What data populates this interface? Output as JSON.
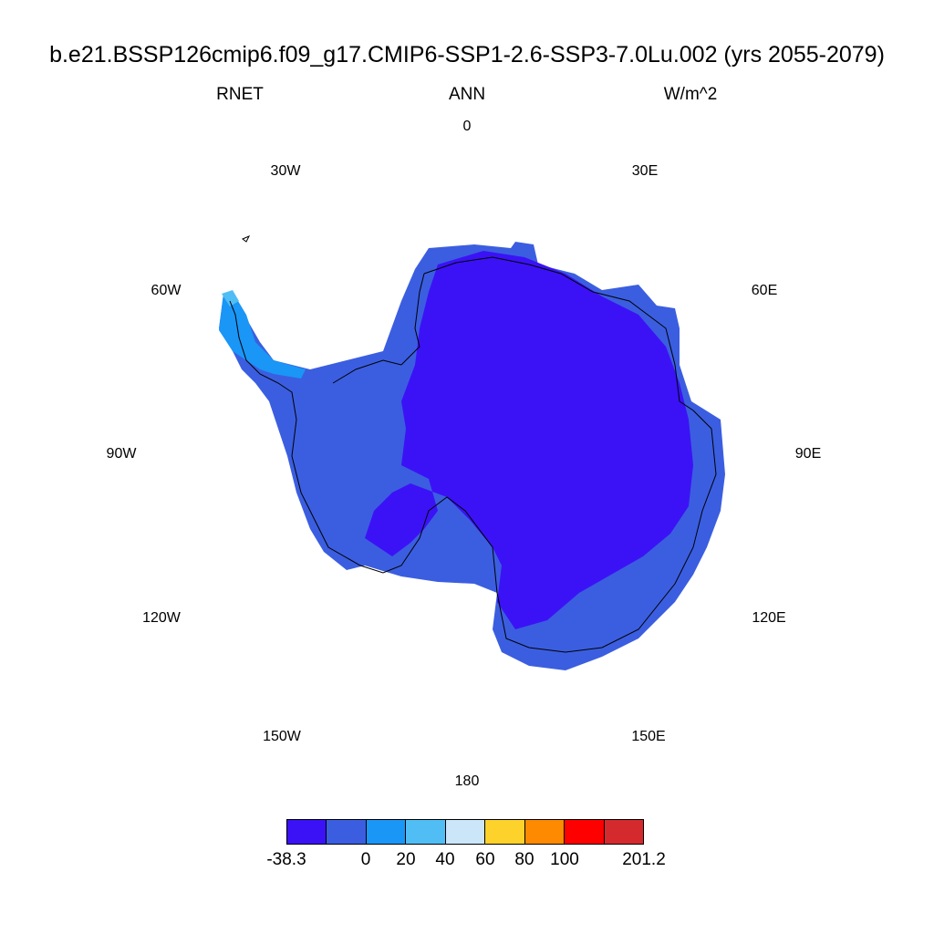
{
  "title": "b.e21.BSSP126cmip6.f09_g17.CMIP6-SSP1-2.6-SSP3-7.0Lu.002 (yrs 2055-2079)",
  "variable": "RNET",
  "season": "ANN",
  "units": "W/m^2",
  "longitude_labels": [
    "0",
    "30E",
    "60E",
    "90E",
    "120E",
    "150E",
    "180",
    "150W",
    "120W",
    "90W",
    "60W",
    "30W"
  ],
  "colorbar": {
    "colors": [
      "#3b12f6",
      "#3b5ee0",
      "#1a96f6",
      "#50bef5",
      "#cbe6f8",
      "#fdd22a",
      "#fd8a00",
      "#fe0000",
      "#d42a2e"
    ],
    "labels": [
      "-38.3",
      "0",
      "20",
      "40",
      "60",
      "80",
      "100",
      "201.2"
    ]
  },
  "map_colors": {
    "interior": "#3b12f6",
    "coastal": "#3b5ee0",
    "peninsula": "#1a96f6",
    "peninsula_light": "#50bef5",
    "outline": "#000000"
  }
}
